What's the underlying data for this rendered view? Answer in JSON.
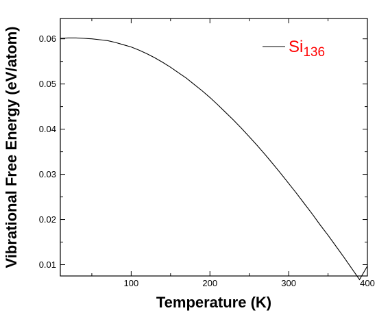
{
  "chart_data": {
    "type": "line",
    "title": "",
    "xlabel": "Temperature (K)",
    "ylabel": "Vibrational Free Energy (eV/atom)",
    "xlim": [
      10,
      400
    ],
    "ylim": [
      0.0075,
      0.0645
    ],
    "xticks": [
      100,
      200,
      300,
      400
    ],
    "xtick_labels": [
      "100",
      "200",
      "300",
      "400"
    ],
    "yticks": [
      0.01,
      0.02,
      0.03,
      0.04,
      0.05,
      0.06
    ],
    "ytick_labels": [
      "0.01",
      "0.02",
      "0.03",
      "0.04",
      "0.05",
      "0.06"
    ],
    "grid": false,
    "legend_position": "top-right",
    "series": [
      {
        "name": "Si136",
        "legend_base": "Si",
        "legend_sub": "136",
        "color": "#000000",
        "label_color": "#ff0000",
        "x": [
          10,
          20,
          30,
          40,
          50,
          60,
          70,
          80,
          90,
          100,
          110,
          120,
          130,
          140,
          150,
          160,
          170,
          180,
          190,
          200,
          210,
          220,
          230,
          240,
          250,
          260,
          270,
          280,
          290,
          300,
          310,
          320,
          330,
          340,
          350,
          360,
          370,
          380,
          390,
          400
        ],
        "y": [
          0.0601,
          0.0602,
          0.0602,
          0.0601,
          0.06,
          0.0598,
          0.0596,
          0.0592,
          0.0587,
          0.0582,
          0.0575,
          0.0567,
          0.0558,
          0.0548,
          0.0537,
          0.0525,
          0.0513,
          0.0499,
          0.0485,
          0.047,
          0.0454,
          0.0437,
          0.042,
          0.0402,
          0.0383,
          0.0364,
          0.0344,
          0.0323,
          0.0302,
          0.028,
          0.0258,
          0.0235,
          0.0212,
          0.0188,
          0.0165,
          0.0141,
          0.0117,
          0.0092,
          0.0067,
          0.0097
        ]
      }
    ]
  }
}
